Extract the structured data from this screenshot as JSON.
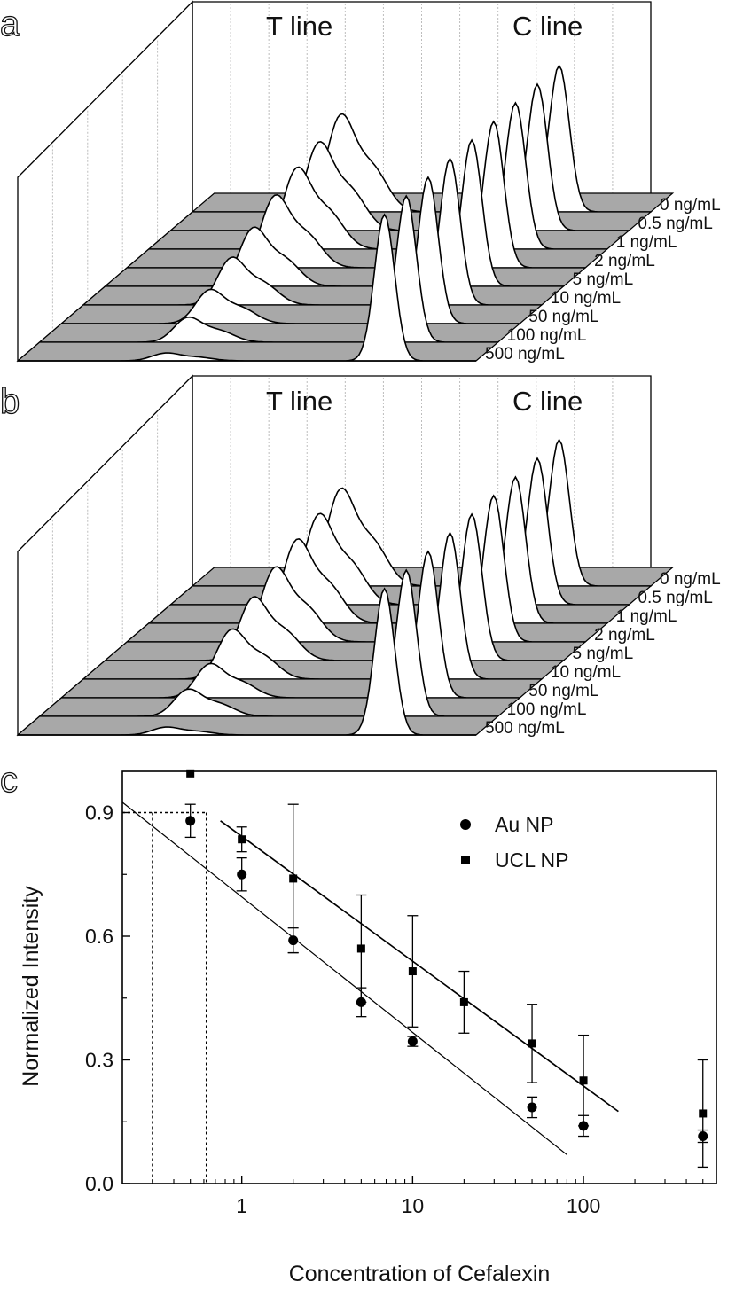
{
  "panel_labels": {
    "a": "a",
    "b": "b",
    "c": "c"
  },
  "panel_a": {
    "t_line_label": "T line",
    "c_line_label": "C line"
  },
  "panel_b": {
    "t_line_label": "T line",
    "c_line_label": "C line"
  },
  "concentration_labels": [
    "0 ng/mL",
    "0.5 ng/mL",
    "1 ng/mL",
    "2 ng/mL",
    "5 ng/mL",
    "10 ng/mL",
    "50 ng/mL",
    "100 ng/mL",
    "500 ng/mL"
  ],
  "colors": {
    "baseline_fill": "#a8a8a8",
    "peak_fill": "#ffffff",
    "line": "#000000",
    "gridline": "#bdbdbd"
  },
  "chart_data": [
    {
      "type": "area",
      "panel": "a",
      "title": "",
      "annotations": [
        "T line",
        "C line"
      ],
      "series": [
        {
          "name": "0 ng/mL",
          "t_line_relative_height": 0.86,
          "c_line_relative_height": 1.0
        },
        {
          "name": "0.5 ng/mL",
          "t_line_relative_height": 0.78,
          "c_line_relative_height": 1.0
        },
        {
          "name": "1 ng/mL",
          "t_line_relative_height": 0.72,
          "c_line_relative_height": 1.0
        },
        {
          "name": "2 ng/mL",
          "t_line_relative_height": 0.64,
          "c_line_relative_height": 1.0
        },
        {
          "name": "5 ng/mL",
          "t_line_relative_height": 0.52,
          "c_line_relative_height": 1.0
        },
        {
          "name": "10 ng/mL",
          "t_line_relative_height": 0.42,
          "c_line_relative_height": 1.0
        },
        {
          "name": "50 ng/mL",
          "t_line_relative_height": 0.3,
          "c_line_relative_height": 1.0
        },
        {
          "name": "100 ng/mL",
          "t_line_relative_height": 0.22,
          "c_line_relative_height": 1.0
        },
        {
          "name": "500 ng/mL",
          "t_line_relative_height": 0.07,
          "c_line_relative_height": 1.0
        }
      ]
    },
    {
      "type": "area",
      "panel": "b",
      "title": "",
      "annotations": [
        "T line",
        "C line"
      ],
      "series": [
        {
          "name": "0 ng/mL",
          "t_line_relative_height": 0.86,
          "c_line_relative_height": 1.0
        },
        {
          "name": "0.5 ng/mL",
          "t_line_relative_height": 0.8,
          "c_line_relative_height": 1.0
        },
        {
          "name": "1 ng/mL",
          "t_line_relative_height": 0.74,
          "c_line_relative_height": 1.0
        },
        {
          "name": "2 ng/mL",
          "t_line_relative_height": 0.66,
          "c_line_relative_height": 1.0
        },
        {
          "name": "5 ng/mL",
          "t_line_relative_height": 0.56,
          "c_line_relative_height": 1.0
        },
        {
          "name": "10 ng/mL",
          "t_line_relative_height": 0.44,
          "c_line_relative_height": 1.0
        },
        {
          "name": "50 ng/mL",
          "t_line_relative_height": 0.3,
          "c_line_relative_height": 1.0
        },
        {
          "name": "100 ng/mL",
          "t_line_relative_height": 0.24,
          "c_line_relative_height": 1.0
        },
        {
          "name": "500 ng/mL",
          "t_line_relative_height": 0.07,
          "c_line_relative_height": 1.0
        }
      ]
    },
    {
      "type": "scatter",
      "panel": "c",
      "title": "",
      "xlabel": "Concentration of Cefalexin",
      "ylabel": "Normalized Intensity",
      "x_scale": "log",
      "xlim": [
        0.2,
        600
      ],
      "ylim": [
        0.0,
        1.0
      ],
      "x_ticks": [
        1,
        10,
        100
      ],
      "x_tick_labels": [
        "1",
        "10",
        "100"
      ],
      "y_ticks": [
        0.0,
        0.3,
        0.6,
        0.9
      ],
      "y_tick_labels": [
        "0.0",
        "0.3",
        "0.6",
        "0.9"
      ],
      "legend_position": "top-right",
      "series": [
        {
          "name": "Au NP",
          "marker": "circle",
          "x": [
            0.5,
            1,
            2,
            5,
            10,
            50,
            100,
            500
          ],
          "y": [
            0.88,
            0.75,
            0.59,
            0.44,
            0.345,
            0.185,
            0.14,
            0.115
          ],
          "yerr": [
            0.04,
            0.04,
            0.03,
            0.035,
            0.012,
            0.025,
            0.025,
            0.015
          ],
          "fit_x": [
            0.2,
            80
          ],
          "fit_y": [
            0.925,
            0.07
          ]
        },
        {
          "name": "UCL NP",
          "marker": "square",
          "x": [
            0.5,
            1,
            2,
            5,
            10,
            20,
            50,
            100,
            500
          ],
          "y": [
            0.995,
            0.835,
            0.74,
            0.57,
            0.515,
            0.44,
            0.34,
            0.25,
            0.17
          ],
          "yerr": [
            0.0,
            0.03,
            0.18,
            0.13,
            0.135,
            0.075,
            0.095,
            0.11,
            0.13
          ],
          "fit_x": [
            0.75,
            160
          ],
          "fit_y": [
            0.88,
            0.175
          ]
        }
      ],
      "reference_lines": {
        "y": 0.9,
        "x": [
          0.3,
          0.62
        ]
      }
    }
  ]
}
